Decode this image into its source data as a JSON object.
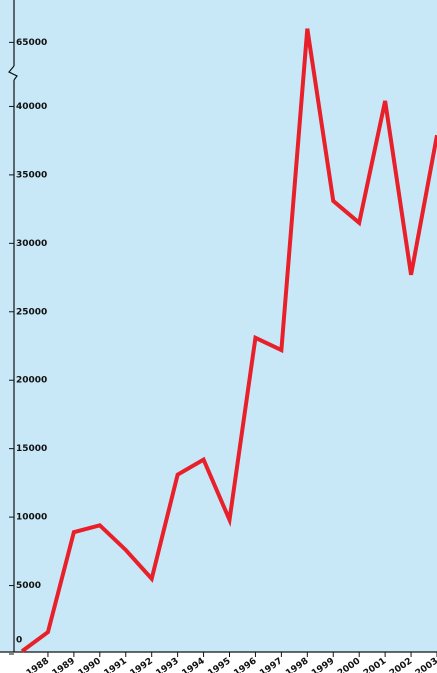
{
  "chart_data": {
    "type": "line",
    "categories": [
      null,
      "1988",
      "1989",
      "1990",
      "1991",
      "1992",
      "1993",
      "1994",
      "1995",
      "1996",
      "1997",
      "1998",
      "1999",
      "2000",
      "2001",
      "2002",
      "2003"
    ],
    "series": [
      {
        "color": "#e8202a",
        "style": "solid",
        "values": [
          200,
          1600,
          8900,
          9400,
          7600,
          5500,
          13100,
          14200,
          9800,
          23100,
          22200,
          66000,
          33100,
          31500,
          40400,
          27700,
          37900
        ]
      },
      {
        "color": "#e8202a",
        "style": "dotted",
        "values": [
          null,
          null,
          null,
          null,
          null,
          null,
          null,
          null,
          null,
          null,
          22200,
          null,
          33100,
          null,
          null,
          null,
          null
        ]
      }
    ],
    "ylim": [
      0,
      67000
    ],
    "axis_break": [
      42000,
      64000
    ],
    "yticks": [
      0,
      5000,
      10000,
      15000,
      20000,
      25000,
      30000,
      35000,
      40000,
      65000
    ],
    "background": "#c8e8f8"
  }
}
